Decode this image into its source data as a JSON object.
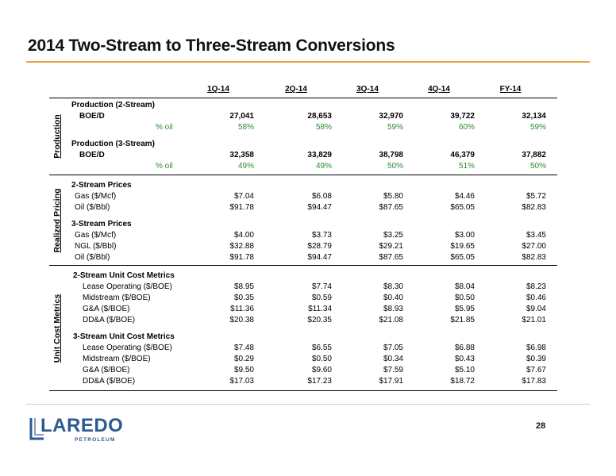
{
  "title": "2014 Two-Stream to Three-Stream Conversions",
  "page_number": "28",
  "logo": {
    "word": "LAREDO",
    "sub": "PETROLEUM"
  },
  "columns": [
    "1Q-14",
    "2Q-14",
    "3Q-14",
    "4Q-14",
    "FY-14"
  ],
  "sections": {
    "production": {
      "label": "Production",
      "groups": [
        {
          "heading": "Production (2-Stream)",
          "rows": [
            {
              "label": "BOE/D",
              "values": [
                "27,041",
                "28,653",
                "32,970",
                "39,722",
                "32,134"
              ]
            },
            {
              "label": "% oil",
              "values": [
                "58%",
                "58%",
                "59%",
                "60%",
                "59%"
              ]
            }
          ]
        },
        {
          "heading": "Production (3-Stream)",
          "rows": [
            {
              "label": "BOE/D",
              "values": [
                "32,358",
                "33,829",
                "38,798",
                "46,379",
                "37,882"
              ]
            },
            {
              "label": "% oil",
              "values": [
                "49%",
                "49%",
                "50%",
                "51%",
                "50%"
              ]
            }
          ]
        }
      ]
    },
    "pricing": {
      "label": "Realized Pricing",
      "groups": [
        {
          "heading": "2-Stream Prices",
          "rows": [
            {
              "label": "Gas ($/Mcf)",
              "values": [
                "$7.04",
                "$6.08",
                "$5.80",
                "$4.46",
                "$5.72"
              ]
            },
            {
              "label": "Oil ($/Bbl)",
              "values": [
                "$91.78",
                "$94.47",
                "$87.65",
                "$65.05",
                "$82.83"
              ]
            }
          ]
        },
        {
          "heading": "3-Stream Prices",
          "rows": [
            {
              "label": "Gas ($/Mcf)",
              "values": [
                "$4.00",
                "$3.73",
                "$3.25",
                "$3.00",
                "$3.45"
              ]
            },
            {
              "label": "NGL ($/Bbl)",
              "values": [
                "$32.88",
                "$28.79",
                "$29.21",
                "$19.65",
                "$27.00"
              ]
            },
            {
              "label": "Oil ($/Bbl)",
              "values": [
                "$91.78",
                "$94.47",
                "$87.65",
                "$65.05",
                "$82.83"
              ]
            }
          ]
        }
      ]
    },
    "costs": {
      "label": "Unit Cost Metrics",
      "groups": [
        {
          "heading": "2-Stream Unit Cost Metrics",
          "rows": [
            {
              "label": "Lease Operating ($/BOE)",
              "values": [
                "$8.95",
                "$7.74",
                "$8.30",
                "$8.04",
                "$8.23"
              ]
            },
            {
              "label": "Midstream ($/BOE)",
              "values": [
                "$0.35",
                "$0.59",
                "$0.40",
                "$0.50",
                "$0.46"
              ]
            },
            {
              "label": "G&A ($/BOE)",
              "values": [
                "$11.36",
                "$11.34",
                "$8.93",
                "$5.95",
                "$9.04"
              ]
            },
            {
              "label": "DD&A ($/BOE)",
              "values": [
                "$20.38",
                "$20.35",
                "$21.08",
                "$21.85",
                "$21.01"
              ]
            }
          ]
        },
        {
          "heading": "3-Stream Unit Cost Metrics",
          "rows": [
            {
              "label": "Lease Operating ($/BOE)",
              "values": [
                "$7.48",
                "$6.55",
                "$7.05",
                "$6.88",
                "$6.98"
              ]
            },
            {
              "label": "Midstream ($/BOE)",
              "values": [
                "$0.29",
                "$0.50",
                "$0.34",
                "$0.43",
                "$0.39"
              ]
            },
            {
              "label": "G&A ($/BOE)",
              "values": [
                "$9.50",
                "$9.60",
                "$7.59",
                "$5.10",
                "$7.67"
              ]
            },
            {
              "label": "DD&A ($/BOE)",
              "values": [
                "$17.03",
                "$17.23",
                "$17.91",
                "$18.72",
                "$17.83"
              ]
            }
          ]
        }
      ]
    }
  }
}
